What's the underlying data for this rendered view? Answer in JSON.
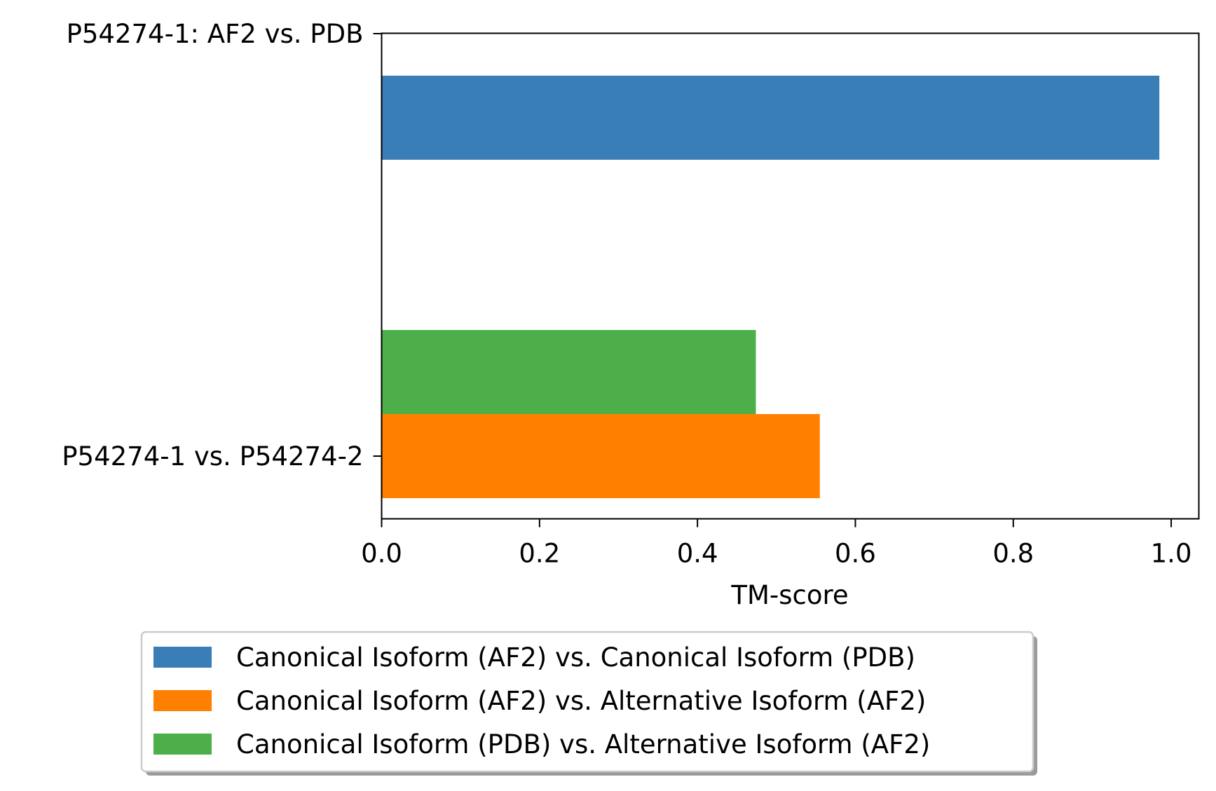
{
  "chart_data": {
    "type": "bar",
    "orientation": "horizontal",
    "title": "",
    "xlabel": "TM-score",
    "ylabel": "",
    "xlim": [
      0,
      1.035
    ],
    "xticks": [
      0.0,
      0.2,
      0.4,
      0.6,
      0.8,
      1.0
    ],
    "xtick_labels": [
      "0.0",
      "0.2",
      "0.4",
      "0.6",
      "0.8",
      "1.0"
    ],
    "categories": [
      "P54274-1: AF2 vs. PDB",
      "P54274-1 vs. P54274-2"
    ],
    "series": [
      {
        "name": "Canonical Isoform (AF2) vs. Canonical Isoform (PDB)",
        "color": "#3a7eb8",
        "values": [
          0.985,
          null
        ]
      },
      {
        "name": "Canonical Isoform (AF2) vs. Alternative Isoform (AF2)",
        "color": "#ff7f00",
        "values": [
          null,
          0.555
        ]
      },
      {
        "name": "Canonical Isoform (PDB) vs. Alternative Isoform (AF2)",
        "color": "#4daf4a",
        "values": [
          null,
          0.474
        ]
      }
    ],
    "grid": false,
    "legend_position": "bottom"
  }
}
